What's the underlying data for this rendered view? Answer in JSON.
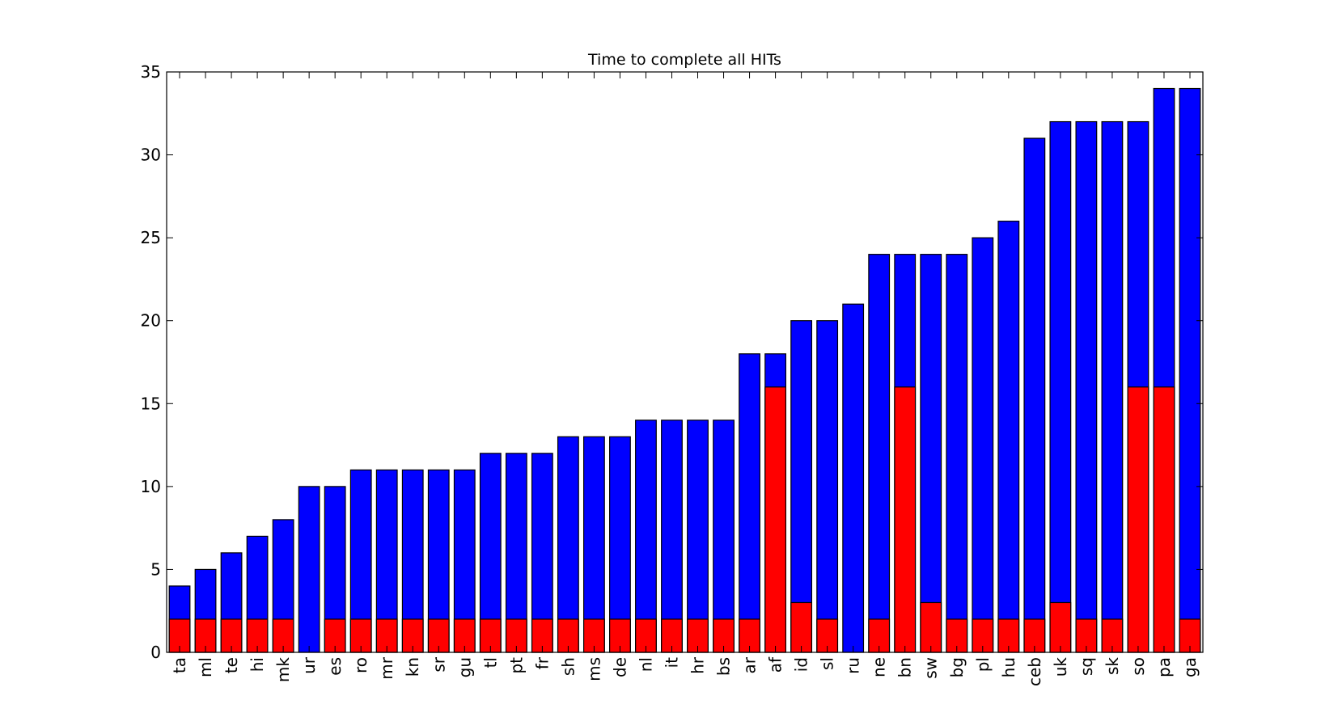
{
  "chart_data": {
    "type": "bar",
    "stacked": false,
    "overlay": true,
    "title": "Time to complete all HITs",
    "xlabel": "",
    "ylabel": "",
    "ylim": [
      0,
      35
    ],
    "yticks": [
      0,
      5,
      10,
      15,
      20,
      25,
      30,
      35
    ],
    "grid": false,
    "legend": "none",
    "categories": [
      "ta",
      "ml",
      "te",
      "hi",
      "mk",
      "ur",
      "es",
      "ro",
      "mr",
      "kn",
      "sr",
      "gu",
      "tl",
      "pt",
      "fr",
      "sh",
      "ms",
      "de",
      "nl",
      "it",
      "hr",
      "bs",
      "ar",
      "af",
      "id",
      "sl",
      "ru",
      "ne",
      "bn",
      "sw",
      "bg",
      "pl",
      "hu",
      "ceb",
      "uk",
      "sq",
      "sk",
      "so",
      "pa",
      "ga"
    ],
    "series": [
      {
        "color": "#0000ff",
        "values": [
          4,
          5,
          6,
          7,
          8,
          10,
          10,
          11,
          11,
          11,
          11,
          11,
          12,
          12,
          12,
          13,
          13,
          13,
          14,
          14,
          14,
          14,
          18,
          18,
          20,
          20,
          21,
          24,
          24,
          24,
          24,
          25,
          26,
          31,
          32,
          32,
          32,
          32,
          34,
          34
        ]
      },
      {
        "color": "#ff0000",
        "values": [
          2,
          2,
          2,
          2,
          2,
          0,
          2,
          2,
          2,
          2,
          2,
          2,
          2,
          2,
          2,
          2,
          2,
          2,
          2,
          2,
          2,
          2,
          2,
          16,
          3,
          2,
          0,
          2,
          16,
          3,
          2,
          2,
          2,
          2,
          3,
          2,
          2,
          16,
          16,
          2
        ]
      }
    ]
  }
}
